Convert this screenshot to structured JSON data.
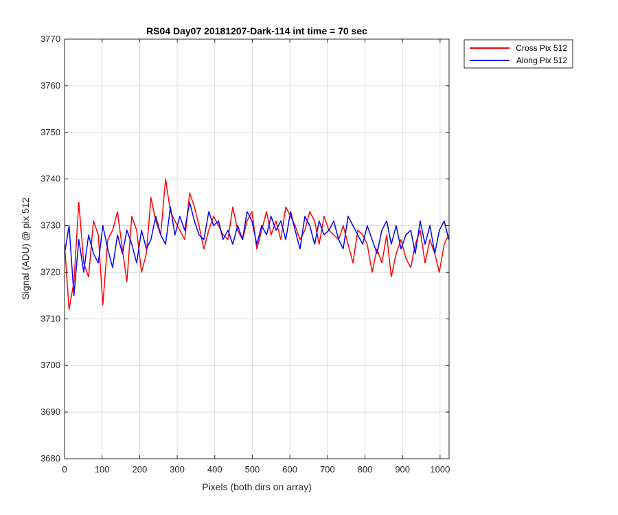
{
  "chart_data": {
    "type": "line",
    "title": "RS04 Day07 20181207-Dark-114 int time = 70 sec",
    "xlabel": "Pixels (both dirs on array)",
    "ylabel": "Signal (ADU) @ pix 512",
    "xlim": [
      0,
      1024
    ],
    "ylim": [
      3680,
      3770
    ],
    "xticks": [
      0,
      100,
      200,
      300,
      400,
      500,
      600,
      700,
      800,
      900,
      1000
    ],
    "yticks": [
      3680,
      3690,
      3700,
      3710,
      3720,
      3730,
      3740,
      3750,
      3760,
      3770
    ],
    "xtick_labels": [
      "0",
      "100",
      "200",
      "300",
      "400",
      "500",
      "600",
      "700",
      "800",
      "900",
      "1000"
    ],
    "ytick_labels": [
      "3680",
      "3690",
      "3700",
      "3710",
      "3720",
      "3730",
      "3740",
      "3750",
      "3760",
      "3770"
    ],
    "grid": true,
    "legend_position": "outside-top-right",
    "series": [
      {
        "name": "Cross Pix 512",
        "color": "#ff0000",
        "x": [
          0,
          12,
          25,
          38,
          51,
          64,
          77,
          90,
          102,
          115,
          128,
          141,
          154,
          166,
          179,
          192,
          205,
          218,
          230,
          243,
          256,
          269,
          282,
          294,
          307,
          320,
          333,
          346,
          358,
          371,
          384,
          397,
          410,
          422,
          435,
          448,
          461,
          474,
          486,
          499,
          512,
          525,
          538,
          550,
          563,
          576,
          589,
          602,
          614,
          627,
          640,
          653,
          666,
          678,
          691,
          704,
          717,
          730,
          742,
          755,
          768,
          781,
          794,
          806,
          819,
          832,
          845,
          858,
          870,
          883,
          896,
          909,
          922,
          934,
          947,
          960,
          973,
          986,
          998,
          1011,
          1023
        ],
        "values": [
          3726,
          3712,
          3718,
          3735,
          3722,
          3719,
          3731,
          3728,
          3713,
          3727,
          3729,
          3733,
          3725,
          3718,
          3732,
          3729,
          3720,
          3724,
          3736,
          3731,
          3728,
          3740,
          3733,
          3731,
          3729,
          3727,
          3737,
          3734,
          3730,
          3725,
          3729,
          3732,
          3730,
          3728,
          3727,
          3734,
          3729,
          3727,
          3731,
          3733,
          3725,
          3729,
          3733,
          3728,
          3731,
          3727,
          3734,
          3732,
          3730,
          3727,
          3729,
          3733,
          3731,
          3726,
          3732,
          3729,
          3728,
          3727,
          3730,
          3726,
          3722,
          3729,
          3728,
          3726,
          3720,
          3725,
          3722,
          3728,
          3719,
          3724,
          3727,
          3723,
          3721,
          3726,
          3729,
          3722,
          3727,
          3724,
          3720,
          3726,
          3728
        ]
      },
      {
        "name": "Along Pix 512",
        "color": "#0000ff",
        "x": [
          0,
          12,
          25,
          38,
          51,
          64,
          77,
          90,
          102,
          115,
          128,
          141,
          154,
          166,
          179,
          192,
          205,
          218,
          230,
          243,
          256,
          269,
          282,
          294,
          307,
          320,
          333,
          346,
          358,
          371,
          384,
          397,
          410,
          422,
          435,
          448,
          461,
          474,
          486,
          499,
          512,
          525,
          538,
          550,
          563,
          576,
          589,
          602,
          614,
          627,
          640,
          653,
          666,
          678,
          691,
          704,
          717,
          730,
          742,
          755,
          768,
          781,
          794,
          806,
          819,
          832,
          845,
          858,
          870,
          883,
          896,
          909,
          922,
          934,
          947,
          960,
          973,
          986,
          998,
          1011,
          1023
        ],
        "values": [
          3724,
          3730,
          3715,
          3727,
          3720,
          3728,
          3724,
          3722,
          3730,
          3725,
          3721,
          3728,
          3724,
          3729,
          3726,
          3722,
          3729,
          3725,
          3727,
          3732,
          3728,
          3726,
          3734,
          3728,
          3732,
          3729,
          3735,
          3731,
          3728,
          3727,
          3733,
          3730,
          3731,
          3727,
          3729,
          3726,
          3730,
          3727,
          3733,
          3731,
          3726,
          3730,
          3728,
          3732,
          3729,
          3731,
          3727,
          3733,
          3729,
          3725,
          3732,
          3730,
          3726,
          3731,
          3728,
          3729,
          3731,
          3727,
          3725,
          3732,
          3730,
          3728,
          3726,
          3730,
          3727,
          3724,
          3729,
          3731,
          3726,
          3730,
          3725,
          3728,
          3729,
          3724,
          3731,
          3726,
          3730,
          3724,
          3729,
          3731,
          3727
        ]
      }
    ]
  }
}
